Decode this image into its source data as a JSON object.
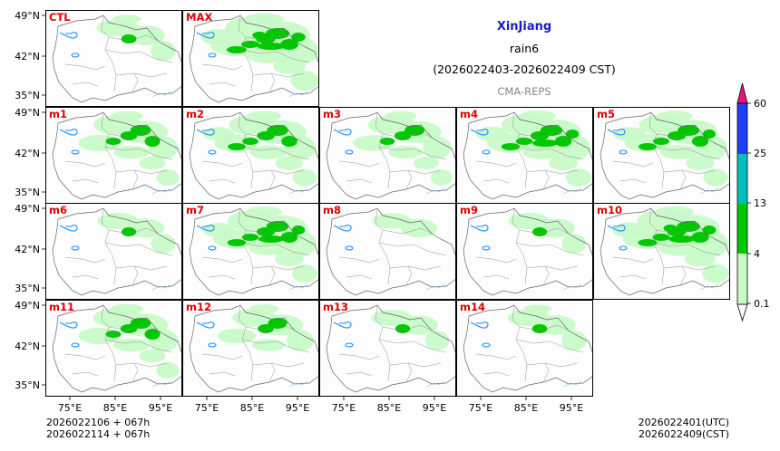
{
  "header": {
    "region": "XinJiang",
    "variable": "rain6",
    "period": "(2026022403-2026022409 CST)",
    "model": "CMA-REPS"
  },
  "footer": {
    "init_line1": "2026022106  +  067h",
    "init_line2": "2026022114  +  067h",
    "valid_utc": "2026022401(UTC)",
    "valid_cst": "2026022409(CST)"
  },
  "axes": {
    "lat_labels": [
      "49°N",
      "42°N",
      "35°N"
    ],
    "lon_labels": [
      "75°E",
      "85°E",
      "95°E"
    ]
  },
  "panels": [
    {
      "label": "CTL",
      "intensity": 0.35
    },
    {
      "label": "MAX",
      "intensity": 1.0
    },
    {
      "label": "m1",
      "intensity": 0.6
    },
    {
      "label": "m2",
      "intensity": 0.7
    },
    {
      "label": "m3",
      "intensity": 0.55
    },
    {
      "label": "m4",
      "intensity": 0.8
    },
    {
      "label": "m5",
      "intensity": 0.75
    },
    {
      "label": "m6",
      "intensity": 0.3
    },
    {
      "label": "m7",
      "intensity": 0.8
    },
    {
      "label": "m8",
      "intensity": 0.25
    },
    {
      "label": "m9",
      "intensity": 0.3
    },
    {
      "label": "m10",
      "intensity": 0.9
    },
    {
      "label": "m11",
      "intensity": 0.6
    },
    {
      "label": "m12",
      "intensity": 0.45
    },
    {
      "label": "m13",
      "intensity": 0.3
    },
    {
      "label": "m14",
      "intensity": 0.35
    }
  ],
  "colorbar": {
    "levels": [
      "0.1",
      "4",
      "13",
      "25",
      "60"
    ],
    "colors": [
      "#c8fac8",
      "#00c800",
      "#00c0c0",
      "#1f3fff",
      "#e8157a"
    ],
    "under_color": "#ffffff"
  },
  "colors": {
    "panel_label": "#e00000",
    "title": "#1a1acc",
    "subtitle": "#888888",
    "light_rain": "#c8fac8",
    "moderate_rain": "#00c800",
    "heavy_rain": "#00a000",
    "lake": "#1e90ff"
  }
}
